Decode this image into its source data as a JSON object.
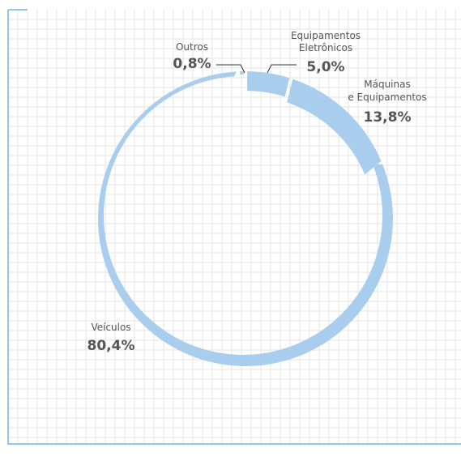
{
  "chart_data": {
    "type": "pie",
    "style": "ring",
    "colors": {
      "series": "#a9cdec",
      "grid": "#e3e3e3",
      "frame": "#9cc3e6",
      "text": "#555555"
    },
    "slices": [
      {
        "label": "Outros",
        "value": 0.8,
        "value_label": "0,8%"
      },
      {
        "label": "Equipamentos Eletrônicos",
        "label_lines": [
          "Equipamentos",
          "Eletrônicos"
        ],
        "value": 5.0,
        "value_label": "5,0%"
      },
      {
        "label": "Máquinas e Equipamentos",
        "label_lines": [
          "Máquinas",
          "e Equipamentos"
        ],
        "value": 13.8,
        "value_label": "13,8%"
      },
      {
        "label": "Veículos",
        "value": 80.4,
        "value_label": "80,4%"
      }
    ]
  }
}
